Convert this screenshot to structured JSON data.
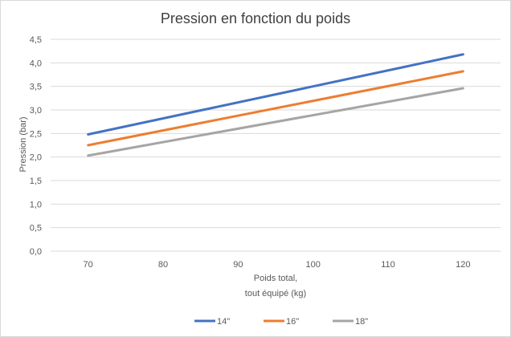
{
  "chart_data": {
    "type": "line",
    "title": "Pression en fonction du poids",
    "ylabel": "Pression (bar)",
    "xlabel_lines": [
      "Poids total,",
      "tout équipé (kg)"
    ],
    "x": [
      70,
      120
    ],
    "xticks": [
      "70",
      "80",
      "90",
      "100",
      "110",
      "120"
    ],
    "xtick_values": [
      70,
      80,
      90,
      100,
      110,
      120
    ],
    "yticks": [
      "0,0",
      "0,5",
      "1,0",
      "1,5",
      "2,0",
      "2,5",
      "3,0",
      "3,5",
      "4,0",
      "4,5"
    ],
    "ytick_values": [
      0,
      0.5,
      1,
      1.5,
      2,
      2.5,
      3,
      3.5,
      4,
      4.5
    ],
    "ylim": [
      0,
      4.5
    ],
    "xlim": [
      65,
      125
    ],
    "grid": true,
    "legend_position": "bottom",
    "series": [
      {
        "name": "14\"",
        "color": "#4472c4",
        "values": [
          2.48,
          4.18
        ]
      },
      {
        "name": "16\"",
        "color": "#ed7d31",
        "values": [
          2.25,
          3.82
        ]
      },
      {
        "name": "18\"",
        "color": "#a5a5a5",
        "values": [
          2.03,
          3.46
        ]
      }
    ]
  }
}
